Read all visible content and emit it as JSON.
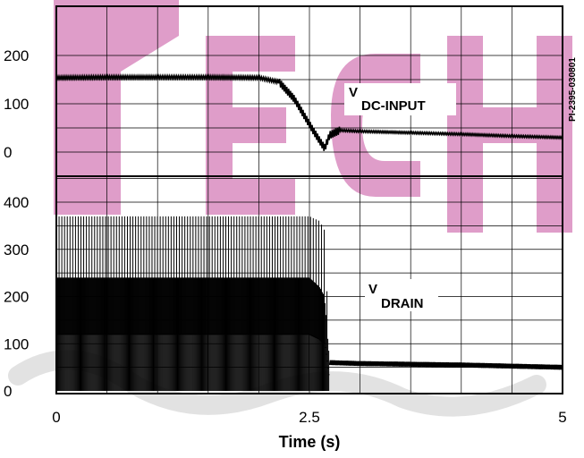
{
  "watermark": {
    "text": "TECH",
    "color": "#b2127e"
  },
  "figure_id": "PI-2395-030801",
  "chart_data": [
    {
      "type": "line",
      "series": [
        {
          "name": "V DC-INPUT",
          "x": [
            0,
            0.5,
            1.0,
            1.5,
            2.0,
            2.2,
            2.35,
            2.45,
            2.55,
            2.65,
            2.7,
            2.8,
            3.0,
            3.5,
            4.0,
            4.5,
            5.0
          ],
          "values": [
            154,
            155,
            155,
            155,
            154,
            145,
            110,
            75,
            40,
            8,
            35,
            45,
            43,
            40,
            37,
            33,
            30
          ]
        }
      ],
      "xlim": [
        0,
        5
      ],
      "ylim": [
        -50,
        250
      ],
      "yticks": [
        "200",
        "100",
        "0"
      ],
      "annotation": {
        "main": "V",
        "sub": "DC-INPUT"
      }
    },
    {
      "type": "line",
      "series": [
        {
          "name": "V DRAIN",
          "x": [
            0,
            2.5,
            2.6,
            2.65,
            2.7,
            3.0,
            4.0,
            5.0
          ],
          "peak": [
            370,
            370,
            360,
            340,
            60,
            58,
            55,
            50
          ],
          "mid": [
            240,
            240,
            220,
            200,
            60,
            58,
            55,
            50
          ],
          "floor": [
            120,
            120,
            110,
            100,
            20,
            22,
            22,
            22
          ]
        }
      ],
      "xlim": [
        0,
        5
      ],
      "ylim": [
        0,
        500
      ],
      "yticks": [
        "400",
        "300",
        "200",
        "100",
        "0"
      ],
      "annotation": {
        "main": "V",
        "sub": "DRAIN"
      }
    }
  ],
  "x_axis": {
    "ticks": [
      "0",
      "2.5",
      "5"
    ],
    "label": "Time (s)"
  }
}
